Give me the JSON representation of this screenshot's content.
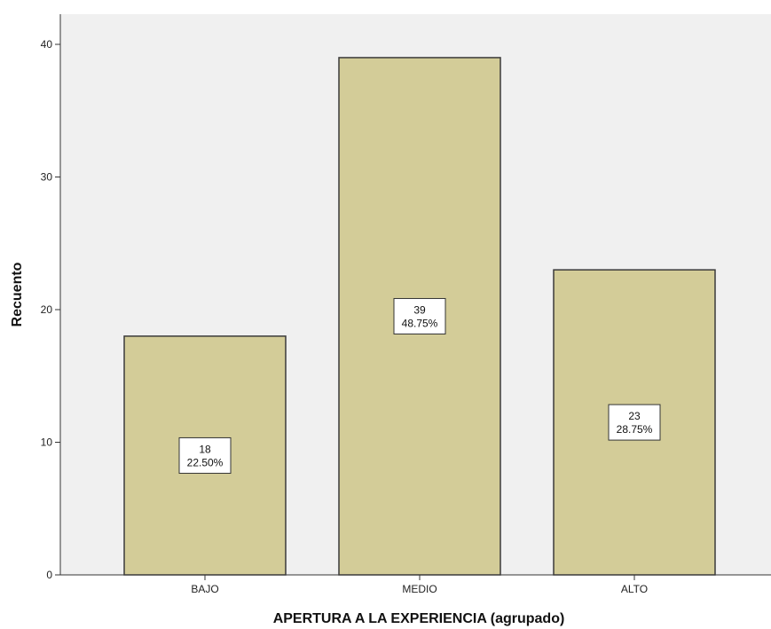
{
  "chart_data": {
    "type": "bar",
    "categories": [
      "BAJO",
      "MEDIO",
      "ALTO"
    ],
    "values": [
      18,
      39,
      23
    ],
    "percent_labels": [
      "22.50%",
      "48.75%",
      "28.75%"
    ],
    "value_labels": [
      "18",
      "39",
      "23"
    ],
    "xlabel": "APERTURA A LA EXPERIENCIA (agrupado)",
    "ylabel": "Recuento",
    "ylim": [
      0,
      42
    ],
    "yticks": [
      "0",
      "10",
      "20",
      "30",
      "40"
    ],
    "grid": false,
    "colors": {
      "bar_fill": "#d3cc98",
      "bar_stroke": "#3a3a3a",
      "plot_background": "#f0f0f0",
      "page_background": "#ffffff"
    }
  }
}
